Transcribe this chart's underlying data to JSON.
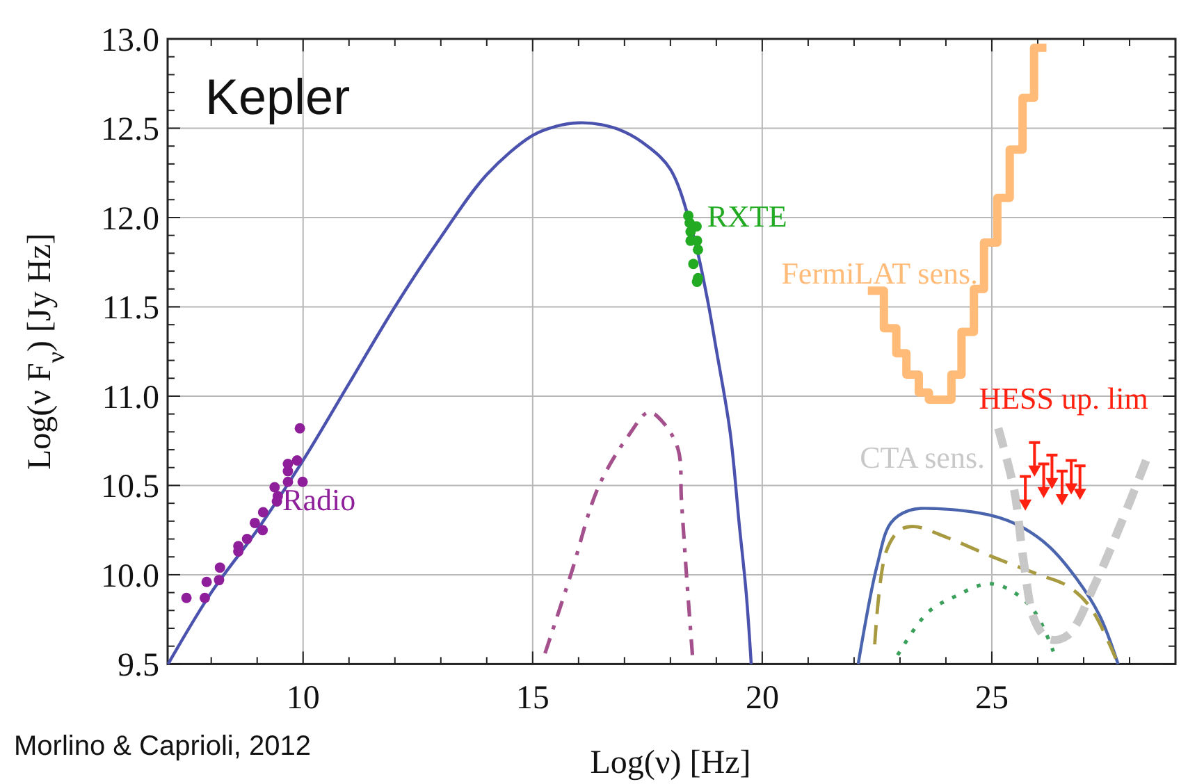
{
  "chart_data": {
    "type": "line",
    "title": "Kepler",
    "xlabel": "Log(ν)  [Hz]",
    "ylabel": "Log(ν F$_{ν}$)  [Jy Hz]",
    "xlim": [
      7.05,
      29.0
    ],
    "ylim": [
      9.5,
      13.0
    ],
    "xticks": [
      {
        "value": 8,
        "label": null
      },
      {
        "value": 9,
        "label": null
      },
      10,
      {
        "value": 11,
        "label": null
      },
      {
        "value": 12,
        "label": null
      },
      {
        "value": 13,
        "label": null
      },
      {
        "value": 14,
        "label": null
      },
      15,
      {
        "value": 16,
        "label": null
      },
      {
        "value": 17,
        "label": null
      },
      {
        "value": 18,
        "label": null
      },
      {
        "value": 19,
        "label": null
      },
      20,
      {
        "value": 21,
        "label": null
      },
      {
        "value": 22,
        "label": null
      },
      {
        "value": 23,
        "label": null
      },
      {
        "value": 24,
        "label": null
      },
      25,
      {
        "value": 26,
        "label": null
      },
      {
        "value": 27,
        "label": null
      },
      {
        "value": 28,
        "label": null
      }
    ],
    "yticks": [
      9.5,
      {
        "value": 9.6,
        "label": null
      },
      {
        "value": 9.7,
        "label": null
      },
      {
        "value": 9.8,
        "label": null
      },
      {
        "value": 9.9,
        "label": null
      },
      {
        "value": 10,
        "label": "10.0"
      },
      {
        "value": 10.1,
        "label": null
      },
      {
        "value": 10.2,
        "label": null
      },
      {
        "value": 10.3,
        "label": null
      },
      {
        "value": 10.4,
        "label": null
      },
      10.5,
      {
        "value": 10.6,
        "label": null
      },
      {
        "value": 10.7,
        "label": null
      },
      {
        "value": 10.8,
        "label": null
      },
      {
        "value": 10.9,
        "label": null
      },
      {
        "value": 11,
        "label": "11.0"
      },
      {
        "value": 11.1,
        "label": null
      },
      {
        "value": 11.2,
        "label": null
      },
      {
        "value": 11.3,
        "label": null
      },
      {
        "value": 11.4,
        "label": null
      },
      11.5,
      {
        "value": 11.6,
        "label": null
      },
      {
        "value": 11.7,
        "label": null
      },
      {
        "value": 11.8,
        "label": null
      },
      {
        "value": 11.9,
        "label": null
      },
      {
        "value": 12,
        "label": "12.0"
      },
      {
        "value": 12.1,
        "label": null
      },
      {
        "value": 12.2,
        "label": null
      },
      {
        "value": 12.3,
        "label": null
      },
      {
        "value": 12.4,
        "label": null
      },
      12.5,
      {
        "value": 12.6,
        "label": null
      },
      {
        "value": 12.7,
        "label": null
      },
      {
        "value": 12.8,
        "label": null
      },
      {
        "value": 12.9,
        "label": null
      },
      {
        "value": 13,
        "label": "13.0"
      }
    ],
    "grid": true,
    "series": [
      {
        "color": "#4a52ae",
        "line_style": "solid",
        "x": [
          7.06,
          8,
          9,
          10,
          11,
          12,
          13,
          14,
          15,
          15.5,
          16,
          16.5,
          17,
          17.5,
          18,
          18.5,
          18.8,
          19,
          19.3,
          19.5,
          19.65,
          19.76
        ],
        "values": [
          9.5,
          9.9,
          10.25,
          10.64,
          11.07,
          11.5,
          11.89,
          12.24,
          12.46,
          12.51,
          12.53,
          12.52,
          12.48,
          12.4,
          12.27,
          11.9,
          11.55,
          11.26,
          10.8,
          10.28,
          9.9,
          9.5
        ]
      },
      {
        "type": "scatter",
        "name": "Radio",
        "color": "#8e1e9a",
        "marker": "circle",
        "x": [
          7.46,
          7.86,
          7.9,
          8.19,
          8.17,
          8.59,
          8.59,
          8.78,
          8.95,
          9.12,
          9.13,
          9.38,
          9.43,
          9.45,
          9.67,
          9.67,
          9.67,
          9.87,
          9.93,
          9.99
        ],
        "values": [
          9.87,
          9.87,
          9.96,
          10.04,
          9.97,
          10.16,
          10.13,
          10.2,
          10.29,
          10.25,
          10.35,
          10.49,
          10.41,
          10.44,
          10.52,
          10.58,
          10.62,
          10.64,
          10.82,
          10.52
        ]
      },
      {
        "type": "scatter",
        "name": "RXTE",
        "color": "#22aa22",
        "marker": "circle",
        "x": [
          18.39,
          18.42,
          18.57,
          18.44,
          18.44,
          18.58,
          18.6,
          18.5,
          18.6,
          18.58
        ],
        "values": [
          12.01,
          11.97,
          11.95,
          11.92,
          11.87,
          11.87,
          11.82,
          11.74,
          11.66,
          11.64
        ]
      },
      {
        "color": "#a4508c",
        "line_style": "dashdot",
        "x": [
          15.27,
          15.83,
          16.43,
          17.09,
          17.53,
          17.85,
          18.17,
          18.24,
          18.35,
          18.48
        ],
        "values": [
          9.56,
          10.0,
          10.49,
          10.78,
          10.91,
          10.85,
          10.7,
          10.42,
          10.0,
          9.55
        ]
      },
      {
        "color": "#4a64ae",
        "line_style": "solid",
        "x": [
          22.09,
          22.5,
          22.8,
          23.2,
          23.81,
          25.02,
          25.63,
          26.24,
          26.84,
          27.35,
          27.75
        ],
        "values": [
          9.5,
          10.05,
          10.29,
          10.36,
          10.37,
          10.33,
          10.27,
          10.16,
          9.98,
          9.77,
          9.5
        ]
      },
      {
        "color": "#a89a40",
        "line_style": "dashed",
        "x": [
          22.45,
          22.7,
          23.0,
          23.31,
          24.01,
          25.02,
          26.03,
          26.63,
          27.14,
          27.7
        ],
        "values": [
          9.61,
          10.13,
          10.25,
          10.27,
          10.21,
          10.1,
          10.0,
          9.94,
          9.82,
          9.53
        ]
      },
      {
        "color": "#3aa05a",
        "line_style": "dotted",
        "x": [
          22.95,
          23.61,
          24.21,
          24.92,
          25.43,
          25.94,
          26.34
        ],
        "values": [
          9.55,
          9.79,
          9.88,
          9.95,
          9.91,
          9.79,
          9.57
        ]
      },
      {
        "type": "step",
        "name": "FermiLAT sens.",
        "color": "#ffbb77",
        "line_style": "solid",
        "x": [
          22.3,
          22.65,
          22.92,
          23.14,
          23.41,
          23.63,
          24.12,
          24.34,
          24.61,
          24.83,
          25.12,
          25.39,
          25.67,
          25.92,
          26.19
        ],
        "values": [
          11.59,
          11.38,
          11.24,
          11.12,
          11.02,
          10.98,
          11.12,
          11.36,
          11.6,
          11.86,
          12.11,
          12.38,
          12.67,
          12.95,
          12.95
        ]
      },
      {
        "name": "CTA sens.",
        "color": "#c8c8c8",
        "line_style": "dashed",
        "x": [
          25.14,
          25.49,
          25.69,
          25.94,
          26.24,
          26.65,
          27.25,
          27.85,
          28.36
        ],
        "values": [
          10.82,
          10.47,
          10.08,
          9.74,
          9.64,
          9.66,
          9.95,
          10.31,
          10.64
        ]
      },
      {
        "type": "scatter",
        "name": "HESS up. lim",
        "color": "#ff2010",
        "marker": "triangle",
        "x": [
          25.73,
          25.93,
          26.13,
          26.31,
          26.53,
          26.73,
          26.92
        ],
        "values": [
          10.39,
          10.58,
          10.46,
          10.51,
          10.42,
          10.48,
          10.45
        ],
        "errors": [
          [
            10.39,
            10.55
          ],
          [
            10.58,
            10.74
          ],
          [
            10.46,
            10.62
          ],
          [
            10.51,
            10.67
          ],
          [
            10.42,
            10.58
          ],
          [
            10.48,
            10.64
          ],
          [
            10.45,
            10.61
          ]
        ]
      }
    ],
    "annotations": [
      "Morlino & Caprioli, 2012"
    ]
  }
}
